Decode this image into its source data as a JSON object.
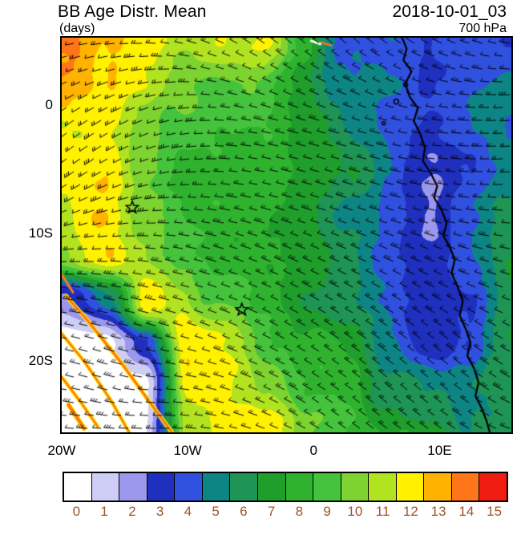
{
  "header": {
    "title": "BB Age Distr. Mean",
    "units_label": "(days)",
    "datetime": "2018-10-01_03",
    "level_label": "700 hPa"
  },
  "chart_data": {
    "type": "heatmap",
    "title": "BB Age Distr. Mean",
    "units": "days",
    "valid_time": "2018-10-01_03",
    "pressure_level_hpa": 700,
    "extent": {
      "lon_min": -20,
      "lon_max": 15.7,
      "lat_min": -25.6,
      "lat_max": 5.3
    },
    "x_ticks": [
      {
        "value": -20,
        "label": "20W"
      },
      {
        "value": -10,
        "label": "10W"
      },
      {
        "value": 0,
        "label": "0"
      },
      {
        "value": 10,
        "label": "10E"
      }
    ],
    "y_ticks": [
      {
        "value": 0,
        "label": "0"
      },
      {
        "value": -10,
        "label": "10S"
      },
      {
        "value": -20,
        "label": "20S"
      }
    ],
    "colorbar": {
      "values": [
        "0",
        "1",
        "2",
        "3",
        "4",
        "5",
        "6",
        "7",
        "8",
        "9",
        "10",
        "11",
        "12",
        "13",
        "14",
        "15"
      ],
      "colors": [
        "#FFFFFF",
        "#CDCDF5",
        "#9A97EC",
        "#1F2FBE",
        "#3050E0",
        "#0E8585",
        "#1E9455",
        "#1F9E2C",
        "#2FB32F",
        "#45C33C",
        "#7DD32F",
        "#B2E321",
        "#FFF100",
        "#FFB300",
        "#FF7519",
        "#EF1C12"
      ],
      "label_color": "#A0522D"
    },
    "age_grid": {
      "description": "Mean biomass-burning age (days); coarse 12x10 sample of the filled-contour field, rows north-to-south, columns west-to-east over the map extent",
      "values": [
        [
          14,
          13,
          12,
          11,
          12,
          12,
          8,
          4,
          4,
          3,
          4,
          3
        ],
        [
          13,
          12,
          12,
          10,
          9,
          9,
          7,
          5,
          4,
          3,
          4,
          5
        ],
        [
          12,
          12,
          10,
          9,
          8,
          8,
          7,
          5,
          4,
          3,
          4,
          5
        ],
        [
          12,
          12,
          10,
          8,
          8,
          8,
          7,
          6,
          4,
          3,
          4,
          5
        ],
        [
          11,
          12,
          10,
          8,
          8,
          8,
          7,
          5,
          4,
          3,
          4,
          6
        ],
        [
          10,
          12,
          11,
          9,
          8,
          8,
          7,
          6,
          4,
          3,
          4,
          6
        ],
        [
          2,
          6,
          12,
          11,
          9,
          8,
          7,
          6,
          4,
          3,
          4,
          6
        ],
        [
          0,
          0,
          3,
          12,
          11,
          9,
          8,
          7,
          5,
          3,
          4,
          6
        ],
        [
          0,
          0,
          0,
          12,
          12,
          10,
          8,
          8,
          6,
          5,
          5,
          6
        ],
        [
          0,
          0,
          0,
          11,
          12,
          12,
          10,
          9,
          8,
          7,
          6,
          7
        ]
      ]
    },
    "markers": [
      {
        "name": "ascension-island",
        "symbol": "star",
        "lon": -14.4,
        "lat": -8.0
      },
      {
        "name": "st-helena",
        "symbol": "star",
        "lon": -5.7,
        "lat": -16.0
      }
    ],
    "coastline": [
      [
        0.757,
        0
      ],
      [
        0.767,
        0.028
      ],
      [
        0.76,
        0.057
      ],
      [
        0.778,
        0.085
      ],
      [
        0.764,
        0.117
      ],
      [
        0.774,
        0.15
      ],
      [
        0.792,
        0.178
      ],
      [
        0.783,
        0.211
      ],
      [
        0.797,
        0.243
      ],
      [
        0.808,
        0.279
      ],
      [
        0.803,
        0.312
      ],
      [
        0.821,
        0.344
      ],
      [
        0.835,
        0.376
      ],
      [
        0.828,
        0.405
      ],
      [
        0.845,
        0.437
      ],
      [
        0.856,
        0.47
      ],
      [
        0.849,
        0.502
      ],
      [
        0.863,
        0.53
      ],
      [
        0.874,
        0.563
      ],
      [
        0.867,
        0.597
      ],
      [
        0.881,
        0.632
      ],
      [
        0.892,
        0.668
      ],
      [
        0.885,
        0.704
      ],
      [
        0.899,
        0.739
      ],
      [
        0.909,
        0.773
      ],
      [
        0.902,
        0.806
      ],
      [
        0.917,
        0.838
      ],
      [
        0.927,
        0.874
      ],
      [
        0.92,
        0.907
      ],
      [
        0.934,
        0.939
      ],
      [
        0.945,
        0.972
      ],
      [
        0.952,
        1.0
      ]
    ],
    "islands": [
      {
        "name": "principe",
        "u": 0.765,
        "v": 0.119,
        "r": 2.5
      },
      {
        "name": "sao-tome",
        "u": 0.744,
        "v": 0.162,
        "r": 3
      },
      {
        "name": "annobon",
        "u": 0.716,
        "v": 0.217,
        "r": 2
      }
    ],
    "streaks": [
      {
        "color": "#FF7519",
        "halo": "#FFF100",
        "width": 3,
        "points": [
          [
            0.01,
            0.655
          ],
          [
            0.06,
            0.72
          ],
          [
            0.13,
            0.82
          ],
          [
            0.2,
            0.93
          ],
          [
            0.245,
            1.0
          ]
        ]
      },
      {
        "color": "#FF7519",
        "halo": "#FFF100",
        "width": 2.5,
        "points": [
          [
            0.0,
            0.75
          ],
          [
            0.05,
            0.82
          ],
          [
            0.11,
            0.92
          ],
          [
            0.15,
            1.0
          ]
        ]
      },
      {
        "color": "#FF7519",
        "halo": "#FFF100",
        "width": 2.5,
        "points": [
          [
            0.0,
            0.86
          ],
          [
            0.04,
            0.92
          ],
          [
            0.08,
            0.985
          ]
        ]
      },
      {
        "color": "#FF7519",
        "halo": "#FFF100",
        "width": 4,
        "points": [
          [
            0.015,
            0.93
          ],
          [
            0.05,
            0.99
          ]
        ]
      },
      {
        "color": "#FF7519",
        "halo": "",
        "width": 3,
        "points": [
          [
            0.0,
            0.6
          ],
          [
            0.025,
            0.645
          ]
        ]
      },
      {
        "color": "#FF7519",
        "halo": "",
        "width": 2.5,
        "points": [
          [
            0.578,
            0.012
          ],
          [
            0.6,
            0.02
          ]
        ]
      },
      {
        "color": "#FFFFFF",
        "halo": "",
        "width": 3,
        "points": [
          [
            0.555,
            0.008
          ],
          [
            0.575,
            0.016
          ]
        ]
      }
    ],
    "wind_barbs": {
      "dx": 17,
      "dy": 16,
      "length": 11,
      "tick_length": 4.5,
      "color": "#000000",
      "vortex": {
        "u": 0.16,
        "v": 0.9
      }
    },
    "grid_lines": false,
    "legend_position": "bottom"
  }
}
